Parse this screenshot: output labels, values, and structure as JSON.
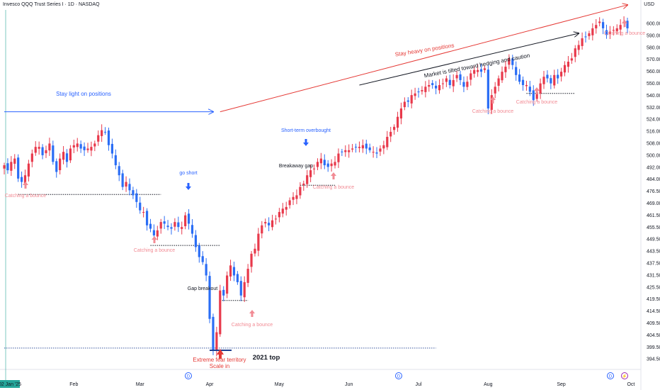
{
  "header": {
    "title": "Invesco QQQ Trust Series I · 1D · NASDAQ",
    "currency": "USD"
  },
  "colors": {
    "up": "#e8394b",
    "down": "#2a6df5",
    "blue": "#2962ff",
    "red": "#e53935",
    "pink": "#f28b94",
    "black": "#131722"
  },
  "chart_data": {
    "type": "candlestick",
    "yrange": [
      397,
      611
    ],
    "y_ticks": [
      "600.00",
      "590.00",
      "580.00",
      "570.00",
      "560.00",
      "550.00",
      "540.00",
      "532.00",
      "524.00",
      "516.00",
      "508.00",
      "500.00",
      "492.00",
      "484.00",
      "476.50",
      "469.00",
      "461.50",
      "455.50",
      "449.50",
      "443.50",
      "437.50",
      "431.50",
      "425.50",
      "419.50",
      "414.50",
      "409.50",
      "404.50",
      "399.50",
      "394.50"
    ],
    "x_ticks": [
      {
        "label": "02 Jan '25",
        "i": 0
      },
      {
        "label": "Feb",
        "i": 20
      },
      {
        "label": "Mar",
        "i": 39
      },
      {
        "label": "Apr",
        "i": 59
      },
      {
        "label": "May",
        "i": 79
      },
      {
        "label": "Jun",
        "i": 99
      },
      {
        "label": "Jul",
        "i": 119
      },
      {
        "label": "Aug",
        "i": 139
      },
      {
        "label": "Sep",
        "i": 160
      },
      {
        "label": "Oct",
        "i": 180
      }
    ],
    "closes": [
      518,
      515,
      520,
      522,
      510,
      508,
      512,
      519,
      525,
      529,
      529,
      524,
      527,
      531,
      520,
      514,
      522,
      526,
      520,
      528,
      530,
      531,
      528,
      527,
      528,
      529,
      531,
      536,
      539,
      538,
      530,
      525,
      518,
      512,
      505,
      508,
      503,
      500,
      496,
      491,
      490,
      482,
      480,
      476,
      479,
      484,
      483,
      481,
      480,
      484,
      481,
      481,
      488,
      483,
      477,
      469,
      463,
      460,
      452,
      426,
      407,
      418,
      443,
      440,
      452,
      458,
      452,
      448,
      440,
      448,
      456,
      465,
      468,
      477,
      482,
      484,
      482,
      485,
      486,
      490,
      492,
      493,
      497,
      499,
      500,
      505,
      507,
      512,
      515,
      516,
      520,
      522,
      518,
      517,
      519,
      520,
      525,
      526,
      527,
      527,
      528,
      529,
      529,
      530,
      528,
      527,
      526,
      525,
      528,
      530,
      535,
      538,
      541,
      547,
      552,
      556,
      556,
      560,
      561,
      562,
      563,
      565,
      566,
      566,
      564,
      566,
      567,
      570,
      566,
      569,
      572,
      569,
      565,
      568,
      573,
      575,
      575,
      574,
      576,
      552,
      560,
      565,
      570,
      574,
      577,
      582,
      578,
      572,
      568,
      566,
      566,
      562,
      557,
      562,
      567,
      571,
      570,
      567,
      572,
      570,
      574,
      578,
      580,
      582,
      588,
      590,
      594,
      595,
      597,
      600,
      602,
      604,
      600,
      596,
      598,
      599,
      600,
      602,
      604,
      600
    ],
    "series": [
      {
        "name": "QQQ",
        "ohlc_note": "daily candles"
      }
    ],
    "levels": [
      {
        "price": 500.5,
        "from_i": 4,
        "to_i": 45
      },
      {
        "price": 470,
        "from_i": 42,
        "to_i": 62
      },
      {
        "price": 437,
        "from_i": 62,
        "to_i": 70
      },
      {
        "price": 506,
        "from_i": 85,
        "to_i": 95
      },
      {
        "price": 561,
        "from_i": 150,
        "to_i": 164
      },
      {
        "price": 408.5,
        "from_i": 0,
        "to_i": 124
      }
    ],
    "arrows": [
      {
        "label": "Stay light on positions",
        "from_i": 0,
        "from_p": 550,
        "to_i": 60,
        "to_p": 550,
        "color": "blue"
      },
      {
        "label": "Stay heavy on positions",
        "from_i": 62,
        "from_p": 550,
        "to_i": 179,
        "to_p": 614,
        "color": "red"
      },
      {
        "label": "Market is tilted toward hedging and caution",
        "from_i": 102,
        "from_p": 566,
        "to_i": 165,
        "to_p": 597,
        "color": "black"
      }
    ]
  },
  "annotations": {
    "bounce_1": "Catching a bounce",
    "bounce_2": "Catching a bounce",
    "bounce_3": "Catching a bounce",
    "bounce_4": "Catching a bounce",
    "bounce_5": "Catching a bounce",
    "bounce_6": "Catching a bounce",
    "bounce_7": "Catching a bounce",
    "go_short": "go short",
    "short_term": "Short-term overbought",
    "gap_breakout": "Gap breakout",
    "breakaway": "Breakaway gap",
    "extreme_fear": "Extreme fear territory",
    "scale_in": "Scale in",
    "top_2021": "2021 top",
    "stay_light": "Stay light on positions",
    "stay_heavy": "Stay heavy on positions",
    "market_tilted": "Market is tilted toward hedging and caution",
    "event_d": "D",
    "event_bolt": "⚡"
  }
}
